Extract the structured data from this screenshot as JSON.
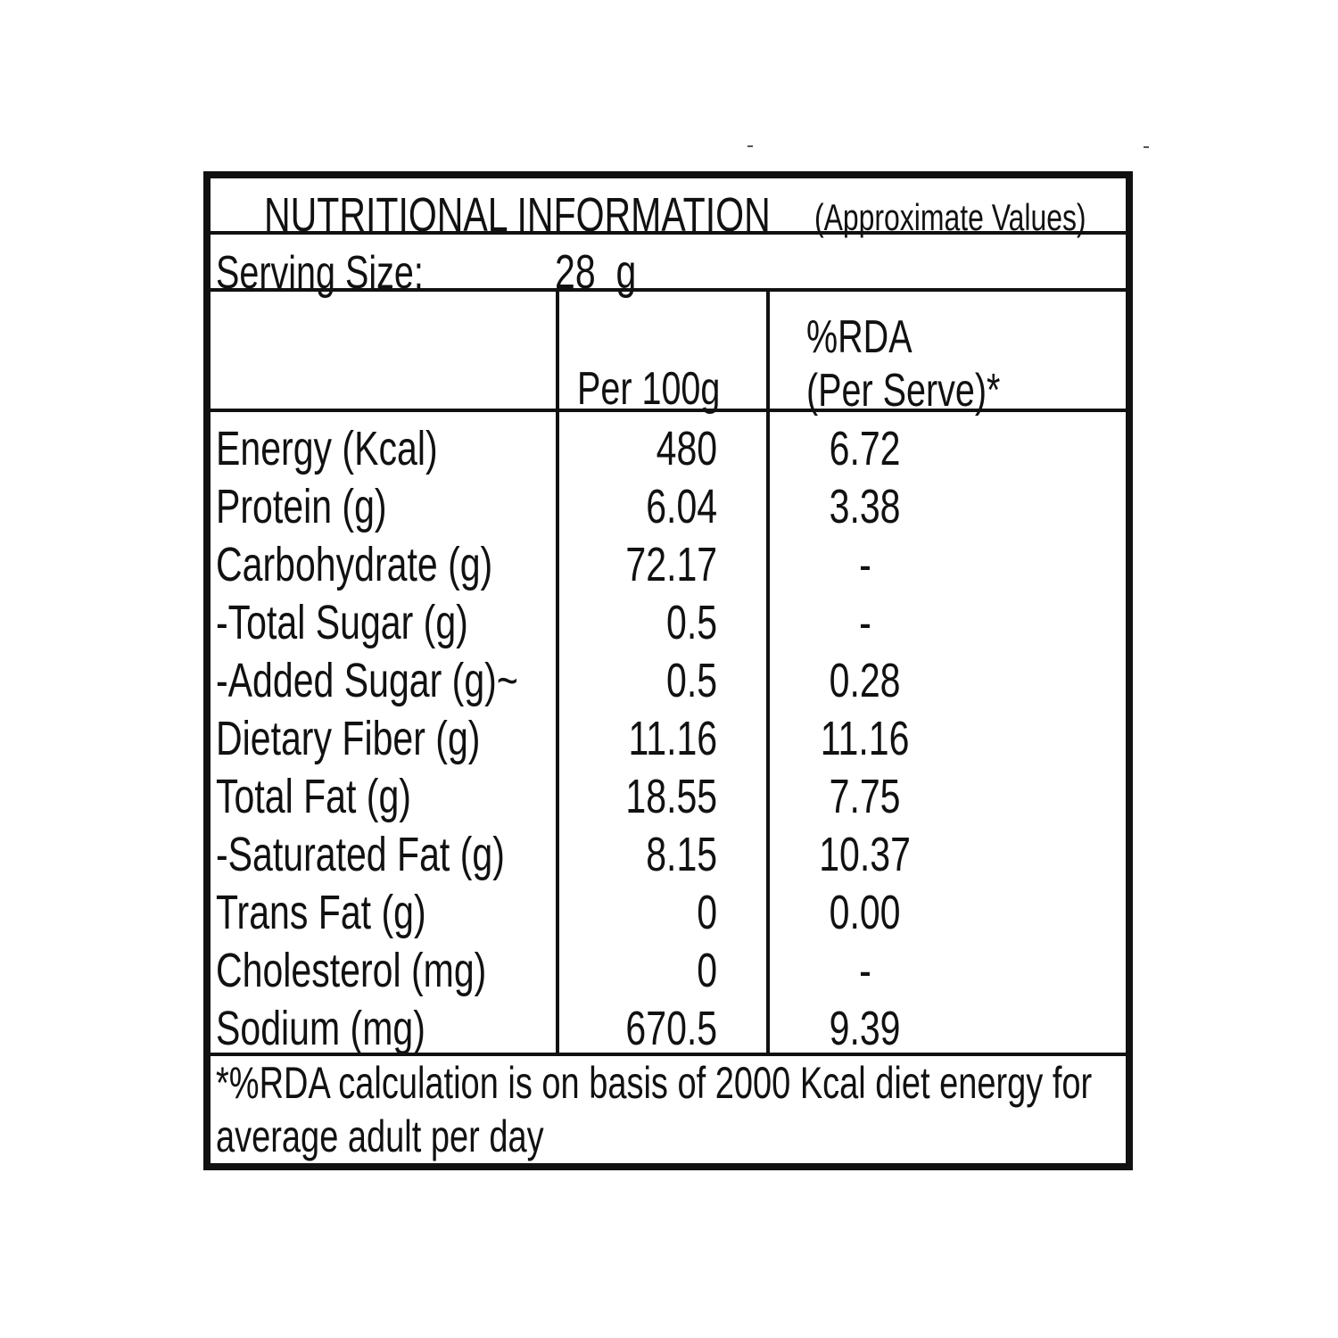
{
  "header": {
    "title": "NUTRITIONAL INFORMATION",
    "note": "(Approximate Values)"
  },
  "serving": {
    "label": "Serving Size:",
    "value": "28  g"
  },
  "columns": {
    "per100": "Per 100g",
    "rda_line1": "%RDA",
    "rda_line2": "(Per Serve)*"
  },
  "rows": [
    {
      "name": "Energy (Kcal)",
      "per100": "480",
      "rda": "6.72"
    },
    {
      "name": "Protein (g)",
      "per100": "6.04",
      "rda": "3.38"
    },
    {
      "name": "Carbohydrate (g)",
      "per100": "72.17",
      "rda": "-"
    },
    {
      "name": "-Total Sugar (g)",
      "per100": "0.5",
      "rda": "-"
    },
    {
      "name": "-Added Sugar (g)~",
      "per100": "0.5",
      "rda": "0.28"
    },
    {
      "name": "Dietary Fiber (g)",
      "per100": "11.16",
      "rda": "11.16"
    },
    {
      "name": "Total Fat (g)",
      "per100": "18.55",
      "rda": "7.75"
    },
    {
      "name": "-Saturated Fat (g)",
      "per100": "8.15",
      "rda": "10.37"
    },
    {
      "name": "Trans Fat (g)",
      "per100": "0",
      "rda": "0.00"
    },
    {
      "name": "Cholesterol (mg)",
      "per100": "0",
      "rda": "-"
    },
    {
      "name": "Sodium (mg)",
      "per100": "670.5",
      "rda": "9.39"
    }
  ],
  "footnote": {
    "line1": "*%RDA calculation is on basis of 2000 Kcal diet energy for",
    "line2": "average adult per day"
  }
}
